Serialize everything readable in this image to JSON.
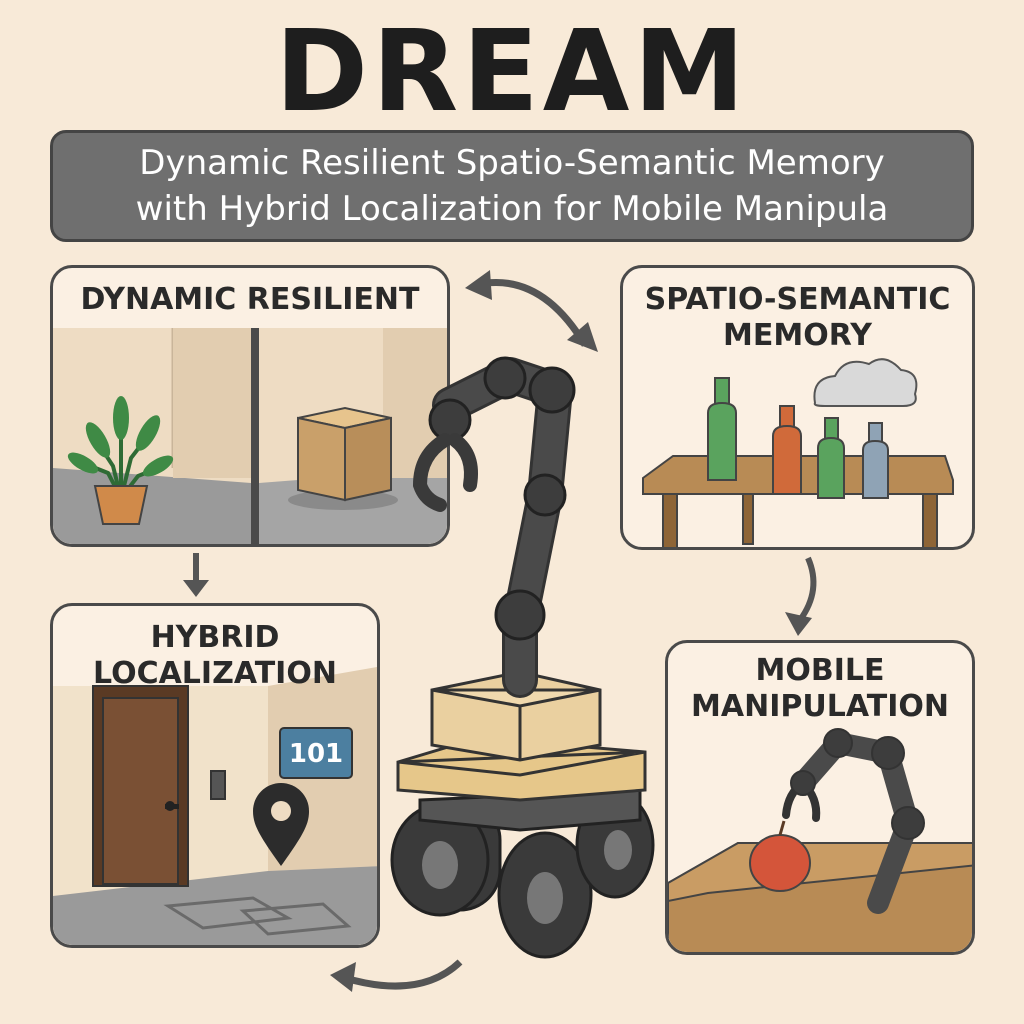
{
  "title": "DREAM",
  "subtitle": {
    "line1": "Dynamic Resilient Spatio-Semantic Memory",
    "line2": "with Hybrid Localization for Mobile Manipula"
  },
  "panels": {
    "dynamic_resilient": {
      "title": "DYNAMIC RESILIENT"
    },
    "spatio_semantic": {
      "line1": "SPATIO-SEMANTIC",
      "line2": "MEMORY"
    },
    "hybrid_localization": {
      "line1": "HYBRID",
      "line2": "LOCALIZATION",
      "room_number": "101"
    },
    "mobile_manipulation": {
      "line1": "MOBILE",
      "line2": "MANIPULATION"
    }
  },
  "colors": {
    "background": "#f8ead8",
    "banner": "#6f6f6f",
    "robot_arm": "#4a4a4a",
    "robot_base": "#e8c98a"
  }
}
